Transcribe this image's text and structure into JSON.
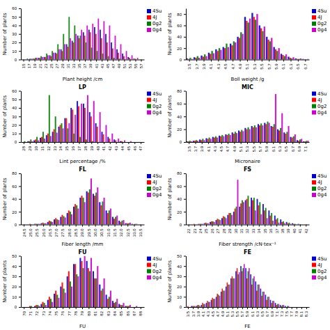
{
  "chart_data": [
    {
      "type": "bar",
      "xlabel": "Plant height /cm",
      "ylabel": "Number of plants",
      "categories": [
        "15",
        "17",
        "19",
        "21",
        "23",
        "25",
        "27",
        "29",
        "31",
        "33",
        "35",
        "37",
        "39",
        "41",
        "43",
        "45",
        "47",
        "49",
        "51",
        "53",
        "55",
        "57"
      ],
      "series": [
        {
          "name": "4Su",
          "color": "#0000CD",
          "values": [
            0,
            1,
            1,
            2,
            3,
            5,
            8,
            12,
            18,
            22,
            28,
            32,
            35,
            38,
            35,
            30,
            20,
            12,
            7,
            3,
            1,
            0
          ]
        },
        {
          "name": "4J",
          "color": "#FF0000",
          "values": [
            0,
            0,
            1,
            2,
            3,
            4,
            7,
            10,
            15,
            20,
            25,
            28,
            32,
            30,
            25,
            20,
            13,
            8,
            4,
            2,
            1,
            0
          ]
        },
        {
          "name": "0g2",
          "color": "#008000",
          "values": [
            0,
            1,
            2,
            4,
            7,
            10,
            18,
            30,
            50,
            40,
            28,
            20,
            14,
            10,
            7,
            4,
            2,
            1,
            0,
            0,
            0,
            0
          ]
        },
        {
          "name": "0g4",
          "color": "#CC00CC",
          "values": [
            0,
            1,
            2,
            3,
            5,
            8,
            12,
            18,
            25,
            30,
            35,
            40,
            42,
            48,
            45,
            40,
            28,
            18,
            10,
            5,
            2,
            0
          ]
        }
      ],
      "ylim": [
        0,
        60
      ],
      "yticks": [
        0,
        10,
        20,
        30,
        40,
        50,
        60
      ],
      "legend": "upper right"
    },
    {
      "type": "bar",
      "xlabel": "Boll weight /g",
      "ylabel": "Number of plants",
      "categories": [
        "3.5",
        "3.7",
        "3.9",
        "4.1",
        "4.3",
        "4.5",
        "4.7",
        "4.9",
        "5.1",
        "5.3",
        "5.5",
        "5.7",
        "5.9",
        "6.1",
        "6.3",
        "6.5",
        "6.7"
      ],
      "series": [
        {
          "name": "4Su",
          "color": "#0000CD",
          "values": [
            2,
            4,
            7,
            12,
            18,
            22,
            28,
            40,
            75,
            82,
            60,
            40,
            22,
            10,
            5,
            2,
            1
          ]
        },
        {
          "name": "4J",
          "color": "#FF0000",
          "values": [
            1,
            3,
            5,
            10,
            15,
            20,
            25,
            38,
            68,
            75,
            55,
            35,
            18,
            8,
            3,
            1,
            0
          ]
        },
        {
          "name": "0g2",
          "color": "#008000",
          "values": [
            3,
            6,
            9,
            15,
            20,
            28,
            32,
            48,
            65,
            70,
            50,
            32,
            15,
            6,
            2,
            1,
            0
          ]
        },
        {
          "name": "0g4",
          "color": "#CC00CC",
          "values": [
            1,
            3,
            6,
            11,
            17,
            22,
            30,
            45,
            72,
            80,
            58,
            38,
            20,
            9,
            4,
            2,
            1
          ]
        }
      ],
      "ylim": [
        0,
        90
      ],
      "yticks": [
        0,
        20,
        40,
        60,
        80
      ],
      "legend": "upper right"
    },
    {
      "type": "bar",
      "title": "LP",
      "xlabel": "Lint percentage /%",
      "ylabel": "Number of plants",
      "categories": [
        "28",
        "29",
        "30",
        "31",
        "32",
        "33",
        "34",
        "35",
        "36",
        "37",
        "38",
        "39",
        "40",
        "41",
        "42",
        "43",
        "44",
        "45",
        "46",
        "47"
      ],
      "series": [
        {
          "name": "4Su",
          "color": "#0000CD",
          "values": [
            0,
            1,
            2,
            5,
            8,
            12,
            18,
            28,
            40,
            48,
            45,
            35,
            22,
            12,
            6,
            3,
            1,
            0,
            0,
            null
          ]
        },
        {
          "name": "4J",
          "color": "#FF0000",
          "values": [
            0,
            1,
            3,
            6,
            10,
            15,
            20,
            28,
            38,
            42,
            40,
            30,
            18,
            9,
            4,
            2,
            1,
            0,
            0,
            null
          ]
        },
        {
          "name": "0g2",
          "color": "#008000",
          "values": [
            1,
            3,
            6,
            12,
            55,
            30,
            22,
            16,
            10,
            6,
            3,
            1,
            0,
            0,
            0,
            0,
            0,
            0,
            0,
            null
          ]
        },
        {
          "name": "0g4",
          "color": "#CC00CC",
          "values": [
            0,
            1,
            2,
            4,
            7,
            11,
            16,
            22,
            32,
            45,
            55,
            48,
            35,
            20,
            10,
            4,
            2,
            1,
            0,
            null
          ]
        }
      ],
      "ylim": [
        0,
        60
      ],
      "yticks": [
        0,
        10,
        20,
        30,
        40,
        50,
        60
      ],
      "legend": "upper right"
    },
    {
      "type": "bar",
      "title": "MIC",
      "xlabel": "Micronaire",
      "ylabel": "Number of plants",
      "categories": [
        "3.5",
        "3.7",
        "3.9",
        "4.1",
        "4.3",
        "4.5",
        "4.7",
        "4.9",
        "5.1",
        "5.3",
        "5.5",
        "5.7",
        "5.9",
        "6.1",
        "6.3",
        "6.5",
        "6.7",
        "6.9",
        "7.1"
      ],
      "series": [
        {
          "name": "4Su",
          "color": "#0000CD",
          "values": [
            1,
            2,
            4,
            6,
            8,
            10,
            12,
            15,
            18,
            22,
            25,
            28,
            30,
            25,
            20,
            15,
            8,
            3,
            1
          ]
        },
        {
          "name": "4J",
          "color": "#FF0000",
          "values": [
            1,
            2,
            3,
            5,
            7,
            9,
            11,
            13,
            16,
            20,
            23,
            26,
            28,
            24,
            18,
            13,
            7,
            2,
            1
          ]
        },
        {
          "name": "0g2",
          "color": "#008000",
          "values": [
            2,
            3,
            5,
            7,
            9,
            11,
            13,
            16,
            19,
            23,
            26,
            29,
            32,
            28,
            22,
            16,
            9,
            4,
            2
          ]
        },
        {
          "name": "0g4",
          "color": "#CC00CC",
          "values": [
            1,
            2,
            3,
            5,
            7,
            9,
            11,
            14,
            17,
            20,
            23,
            26,
            30,
            75,
            45,
            25,
            12,
            5,
            2
          ]
        }
      ],
      "ylim": [
        0,
        80
      ],
      "yticks": [
        0,
        20,
        40,
        60,
        80
      ],
      "legend": "upper right"
    },
    {
      "type": "bar",
      "title": "FL",
      "xlabel": "Fiber length /mm",
      "ylabel": "Number of plants",
      "categories": [
        "24.5",
        "25.0",
        "25.5",
        "26.0",
        "26.5",
        "27.0",
        "27.5",
        "28.0",
        "28.5",
        "29.0",
        "29.5",
        "30.0",
        "30.5",
        "31.0",
        "31.5",
        "32.0",
        "32.5",
        "33.0",
        "33.5"
      ],
      "series": [
        {
          "name": "4Su",
          "color": "#0000CD",
          "values": [
            0,
            0,
            1,
            2,
            4,
            8,
            12,
            18,
            28,
            42,
            52,
            48,
            35,
            22,
            12,
            6,
            2,
            1,
            0
          ]
        },
        {
          "name": "4J",
          "color": "#FF0000",
          "values": [
            0,
            1,
            1,
            3,
            6,
            10,
            15,
            22,
            32,
            45,
            50,
            45,
            30,
            18,
            9,
            4,
            2,
            0,
            0
          ]
        },
        {
          "name": "0g2",
          "color": "#008000",
          "values": [
            0,
            0,
            1,
            2,
            5,
            8,
            13,
            20,
            30,
            42,
            55,
            50,
            36,
            22,
            12,
            6,
            2,
            1,
            0
          ]
        },
        {
          "name": "0g4",
          "color": "#CC00CC",
          "values": [
            0,
            0,
            1,
            2,
            4,
            7,
            11,
            16,
            25,
            35,
            72,
            58,
            42,
            25,
            14,
            7,
            3,
            1,
            0
          ]
        }
      ],
      "ylim": [
        0,
        80
      ],
      "yticks": [
        0,
        20,
        40,
        60,
        80
      ],
      "legend": "upper right"
    },
    {
      "type": "bar",
      "title": "FS",
      "xlabel": "Fiber strength /cN·tex⁻¹",
      "ylabel": "Number of plants",
      "categories": [
        "22",
        "23",
        "24",
        "25",
        "26",
        "27",
        "28",
        "29",
        "30",
        "31",
        "32",
        "33",
        "34",
        "35",
        "36",
        "37",
        "38",
        "39",
        "40",
        "41",
        "42"
      ],
      "series": [
        {
          "name": "4Su",
          "color": "#0000CD",
          "values": [
            0,
            0,
            1,
            2,
            4,
            7,
            10,
            15,
            20,
            28,
            38,
            42,
            40,
            32,
            22,
            14,
            8,
            4,
            2,
            1,
            0
          ]
        },
        {
          "name": "4J",
          "color": "#FF0000",
          "values": [
            0,
            1,
            1,
            3,
            5,
            9,
            13,
            18,
            25,
            33,
            40,
            38,
            30,
            22,
            14,
            8,
            4,
            2,
            1,
            0,
            0
          ]
        },
        {
          "name": "0g2",
          "color": "#008000",
          "values": [
            0,
            0,
            1,
            2,
            5,
            8,
            12,
            18,
            28,
            38,
            45,
            42,
            35,
            26,
            18,
            10,
            5,
            3,
            1,
            0,
            0
          ]
        },
        {
          "name": "0g4",
          "color": "#CC00CC",
          "values": [
            0,
            0,
            1,
            2,
            4,
            7,
            10,
            15,
            70,
            35,
            28,
            22,
            16,
            10,
            6,
            3,
            2,
            1,
            0,
            0,
            0
          ]
        }
      ],
      "ylim": [
        0,
        80
      ],
      "yticks": [
        0,
        20,
        40,
        60,
        80
      ],
      "legend": "upper right"
    },
    {
      "type": "bar",
      "title": "FU",
      "xlabel": "FU",
      "ylabel": "Number of plants",
      "categories": [
        "70",
        "71",
        "72",
        "73",
        "74",
        "75",
        "76",
        "77",
        "78",
        "79",
        "80",
        "81",
        "82",
        "83",
        "84",
        "85",
        "86",
        "87",
        "88"
      ],
      "series": [
        {
          "name": "4Su",
          "color": "#0000CD",
          "values": [
            0,
            0,
            1,
            3,
            7,
            13,
            20,
            30,
            42,
            48,
            45,
            35,
            22,
            12,
            6,
            3,
            1,
            0,
            0
          ]
        },
        {
          "name": "4J",
          "color": "#FF0000",
          "values": [
            0,
            1,
            2,
            5,
            10,
            16,
            24,
            35,
            42,
            45,
            38,
            28,
            16,
            8,
            4,
            2,
            1,
            0,
            0
          ]
        },
        {
          "name": "0g2",
          "color": "#008000",
          "values": [
            0,
            1,
            2,
            4,
            8,
            12,
            18,
            25,
            32,
            38,
            35,
            28,
            18,
            10,
            5,
            2,
            1,
            0,
            0
          ]
        },
        {
          "name": "0g4",
          "color": "#CC00CC",
          "values": [
            0,
            0,
            1,
            2,
            5,
            9,
            14,
            20,
            30,
            50,
            48,
            40,
            28,
            16,
            8,
            4,
            2,
            1,
            0
          ]
        }
      ],
      "ylim": [
        0,
        50
      ],
      "yticks": [
        0,
        10,
        20,
        30,
        40,
        50
      ],
      "legend": "upper right"
    },
    {
      "type": "bar",
      "title": "FE",
      "xlabel": "FE",
      "ylabel": "Number of plants",
      "categories": [
        "3.5",
        "3.7",
        "3.9",
        "4.1",
        "4.3",
        "4.5",
        "4.7",
        "4.9",
        "5.1",
        "5.3",
        "5.5",
        "5.7",
        "5.9",
        "6.1",
        "6.3",
        "6.5",
        "6.7",
        "6.9",
        "7.1",
        "7.3",
        "7.5",
        "7.7",
        "7.9",
        "8.1",
        "8.3"
      ],
      "series": [
        {
          "name": "4Su",
          "color": "#0000CD",
          "values": [
            0,
            1,
            1,
            2,
            4,
            7,
            10,
            15,
            20,
            28,
            35,
            40,
            38,
            32,
            25,
            18,
            12,
            7,
            4,
            2,
            1,
            0,
            0,
            0,
            0
          ]
        },
        {
          "name": "4J",
          "color": "#FF0000",
          "values": [
            1,
            1,
            2,
            4,
            6,
            9,
            13,
            18,
            24,
            30,
            38,
            35,
            28,
            22,
            16,
            11,
            7,
            4,
            2,
            1,
            0,
            0,
            0,
            0,
            0
          ]
        },
        {
          "name": "0g2",
          "color": "#008000",
          "values": [
            0,
            1,
            2,
            3,
            5,
            8,
            12,
            16,
            22,
            28,
            32,
            38,
            35,
            28,
            22,
            15,
            10,
            6,
            3,
            2,
            1,
            0,
            0,
            0,
            0
          ]
        },
        {
          "name": "0g4",
          "color": "#CC00CC",
          "values": [
            0,
            1,
            1,
            3,
            5,
            8,
            11,
            16,
            22,
            28,
            34,
            42,
            38,
            30,
            22,
            15,
            10,
            6,
            3,
            2,
            1,
            0,
            0,
            0,
            0
          ]
        }
      ],
      "ylim": [
        0,
        50
      ],
      "yticks": [
        0,
        10,
        20,
        30,
        40,
        50
      ],
      "legend": "upper right"
    }
  ]
}
